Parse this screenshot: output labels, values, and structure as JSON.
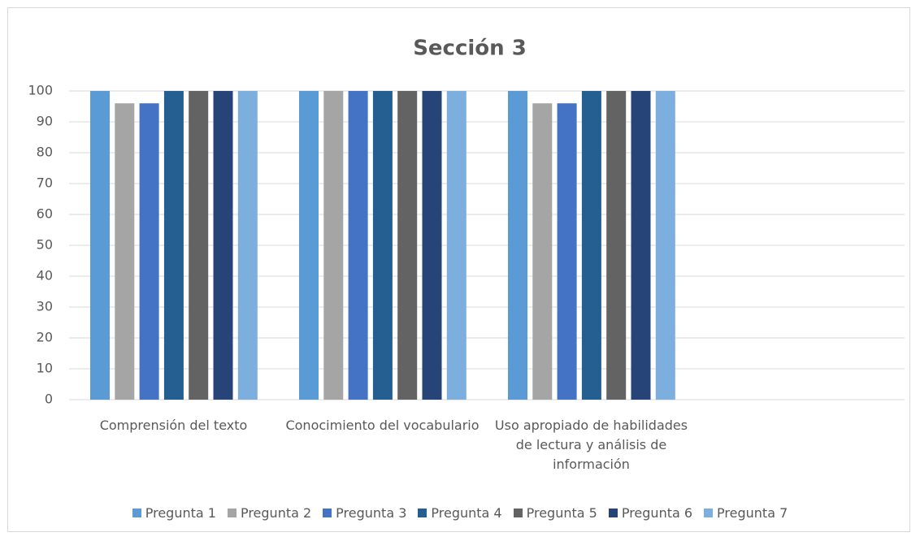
{
  "chart_data": {
    "type": "bar",
    "title": "Sección 3",
    "categories": [
      "Comprensión del texto",
      "Conocimiento del vocabulario",
      "Uso apropiado de habilidades de lectura y análisis de información",
      null
    ],
    "series": [
      {
        "name": "Pregunta 1",
        "color": "#5b9bd5",
        "values": [
          100,
          100,
          100,
          null
        ]
      },
      {
        "name": "Pregunta 2",
        "color": "#a5a5a5",
        "values": [
          96,
          100,
          96,
          null
        ]
      },
      {
        "name": "Pregunta 3",
        "color": "#4472c4",
        "values": [
          96,
          100,
          96,
          null
        ]
      },
      {
        "name": "Pregunta 4",
        "color": "#255e91",
        "values": [
          100,
          100,
          100,
          null
        ]
      },
      {
        "name": "Pregunta 5",
        "color": "#636363",
        "values": [
          100,
          100,
          100,
          null
        ]
      },
      {
        "name": "Pregunta 6",
        "color": "#264478",
        "values": [
          100,
          100,
          100,
          null
        ]
      },
      {
        "name": "Pregunta 7",
        "color": "#7cafdd",
        "values": [
          100,
          100,
          100,
          null
        ]
      }
    ],
    "ylim": [
      0,
      100
    ],
    "yticks": [
      0,
      10,
      20,
      30,
      40,
      50,
      60,
      70,
      80,
      90,
      100
    ],
    "grid": true,
    "legend": "bottom"
  }
}
